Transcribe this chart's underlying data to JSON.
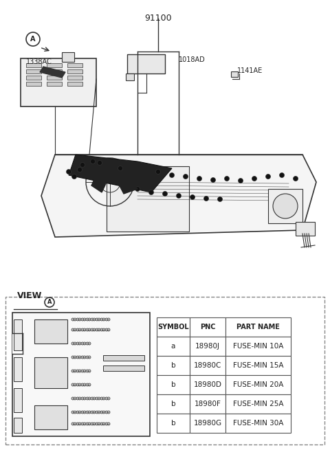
{
  "title": "91100",
  "bg_color": "#ffffff",
  "label_1338AC": "1338AC",
  "label_1018AD": "1018AD",
  "label_1141AE": "1141AE",
  "view_label": "VIEW",
  "view_circle": "A",
  "table_headers": [
    "SYMBOL",
    "PNC",
    "PART NAME"
  ],
  "table_rows": [
    [
      "a",
      "18980J",
      "FUSE-MIN 10A"
    ],
    [
      "b",
      "18980C",
      "FUSE-MIN 15A"
    ],
    [
      "b",
      "18980D",
      "FUSE-MIN 20A"
    ],
    [
      "b",
      "18980F",
      "FUSE-MIN 25A"
    ],
    [
      "b",
      "18980G",
      "FUSE-MIN 30A"
    ]
  ],
  "border_color": "#555555",
  "line_color": "#333333",
  "text_color": "#222222",
  "dashed_border": "#888888"
}
